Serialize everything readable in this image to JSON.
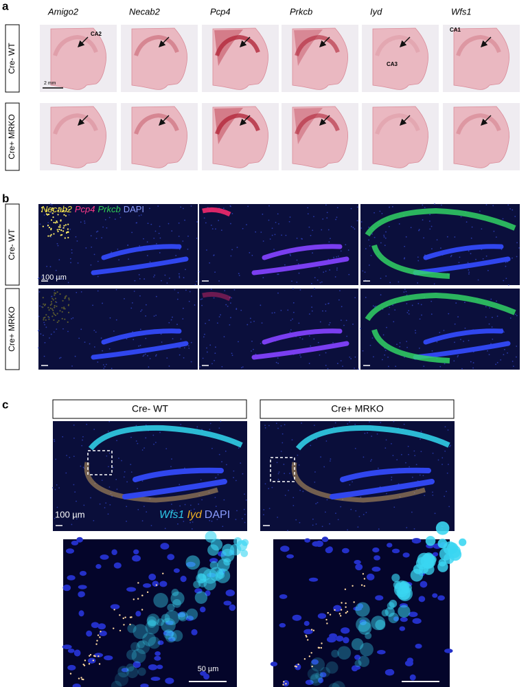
{
  "panel_a": {
    "label": "a",
    "genes": [
      "Amigo2",
      "Necab2",
      "Pcp4",
      "Prkcb",
      "Iyd",
      "Wfs1"
    ],
    "rows": [
      "Cre- WT",
      "Cre+ MRKO"
    ],
    "annotations": {
      "ca2": "CA2",
      "ca1": "CA1",
      "ca3": "CA3"
    },
    "scale_bar": "2 mm"
  },
  "panel_b": {
    "label": "b",
    "legend": [
      "Necab2",
      "Pcp4",
      "Prkcb",
      "DAPI"
    ],
    "rows": [
      "Cre- WT",
      "Cre+ MRKO"
    ],
    "scale_bar": "100 µm"
  },
  "panel_c": {
    "label": "c",
    "columns": [
      "Cre- WT",
      "Cre+ MRKO"
    ],
    "legend": [
      "Wfs1",
      "Iyd",
      "DAPI"
    ],
    "scale_bar": "100 µm",
    "inset_scale_bar": "50 µm"
  }
}
